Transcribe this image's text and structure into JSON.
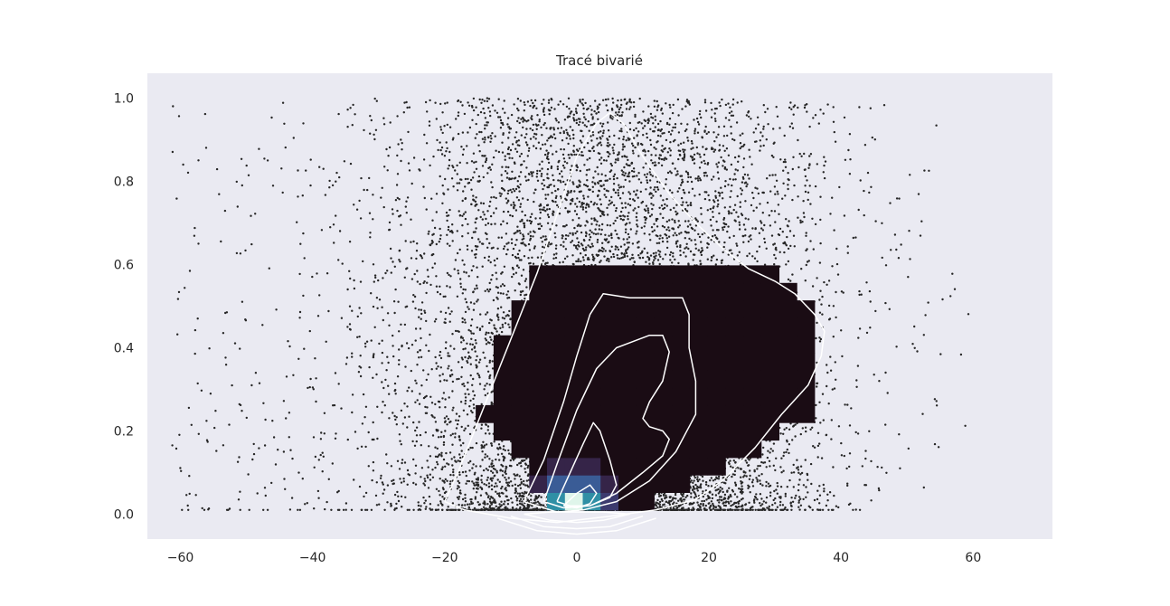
{
  "chart_data": {
    "type": "scatter",
    "title": "Tracé bivarié",
    "xlabel": "",
    "ylabel": "",
    "xlim": [
      -65,
      72
    ],
    "ylim": [
      -0.06,
      1.06
    ],
    "xticks": [
      -60,
      -40,
      -20,
      0,
      20,
      40,
      60
    ],
    "yticks": [
      0.0,
      0.2,
      0.4,
      0.6,
      0.8,
      1.0
    ],
    "xtick_labels": [
      "−60",
      "−40",
      "−20",
      "0",
      "20",
      "40",
      "60"
    ],
    "ytick_labels": [
      "0.0",
      "0.2",
      "0.4",
      "0.6",
      "0.8",
      "1.0"
    ],
    "grid": false,
    "background": "#eaeaf2",
    "layers": [
      "scatter",
      "hist2d",
      "kde-contour"
    ],
    "colors": {
      "points": "#262626",
      "contour": "#ffffff",
      "colormap": [
        "#1a0c14",
        "#2a1633",
        "#352448",
        "#3c3a6e",
        "#3a5c96",
        "#2f8fa5",
        "#4fb8b0",
        "#dff5ea"
      ]
    },
    "scatter_bounds": {
      "x_range": [
        -62,
        70
      ],
      "y_range": [
        0.01,
        1.0
      ],
      "dense_core": {
        "x_center": 5,
        "x_spread": 14,
        "y_peak": 0.0
      }
    },
    "hist2d": {
      "x_edges_start": -18,
      "x_bin_width": 2.7,
      "y_edges_start": 0.01,
      "y_bin_width": 0.042,
      "peak_bin": {
        "x": -0.4,
        "y": 0.02,
        "level": 1.0
      }
    },
    "kde_contours": [
      {
        "level": 1,
        "points": [
          [
            -20,
            0.03
          ],
          [
            -18,
            0.1
          ],
          [
            -15,
            0.22
          ],
          [
            -12,
            0.34
          ],
          [
            -9,
            0.46
          ],
          [
            -6,
            0.58
          ],
          [
            -3,
            0.72
          ],
          [
            0,
            0.86
          ],
          [
            3,
            0.94
          ],
          [
            5,
            0.965
          ],
          [
            7,
            0.94
          ],
          [
            10,
            0.86
          ],
          [
            14,
            0.77
          ],
          [
            18,
            0.7
          ],
          [
            22,
            0.64
          ],
          [
            26,
            0.59
          ],
          [
            30,
            0.56
          ],
          [
            33,
            0.53
          ],
          [
            36,
            0.48
          ],
          [
            37.5,
            0.44
          ],
          [
            37,
            0.38
          ],
          [
            35,
            0.31
          ],
          [
            31,
            0.24
          ],
          [
            27,
            0.16
          ],
          [
            22,
            0.08
          ],
          [
            18,
            0.035
          ],
          [
            12,
            0.01
          ],
          [
            5,
            -0.005
          ],
          [
            -3,
            -0.02
          ],
          [
            -10,
            -0.01
          ],
          [
            -17,
            0.01
          ],
          [
            -20,
            0.03
          ]
        ]
      },
      {
        "level": 2,
        "points": [
          [
            -8,
            0.03
          ],
          [
            -5,
            0.13
          ],
          [
            -2,
            0.27
          ],
          [
            0,
            0.38
          ],
          [
            2,
            0.48
          ],
          [
            4,
            0.53
          ],
          [
            8,
            0.52
          ],
          [
            13,
            0.52
          ],
          [
            16,
            0.52
          ],
          [
            17,
            0.48
          ],
          [
            17,
            0.4
          ],
          [
            18,
            0.32
          ],
          [
            18,
            0.24
          ],
          [
            15,
            0.15
          ],
          [
            11,
            0.08
          ],
          [
            6,
            0.03
          ],
          [
            1,
            0.01
          ],
          [
            -3,
            0.005
          ],
          [
            -8,
            0.03
          ]
        ]
      },
      {
        "level": 3,
        "points": [
          [
            -5,
            0.03
          ],
          [
            -3,
            0.12
          ],
          [
            0,
            0.25
          ],
          [
            3,
            0.35
          ],
          [
            6,
            0.4
          ],
          [
            11,
            0.43
          ],
          [
            13,
            0.43
          ],
          [
            14,
            0.39
          ],
          [
            13,
            0.32
          ],
          [
            11,
            0.27
          ],
          [
            10,
            0.23
          ],
          [
            11,
            0.21
          ],
          [
            13,
            0.2
          ],
          [
            14,
            0.18
          ],
          [
            13,
            0.14
          ],
          [
            10,
            0.1
          ],
          [
            6,
            0.05
          ],
          [
            2,
            0.02
          ],
          [
            -2,
            0.015
          ],
          [
            -5,
            0.03
          ]
        ]
      },
      {
        "level": 4,
        "points": [
          [
            -3,
            0.03
          ],
          [
            -1,
            0.1
          ],
          [
            1,
            0.17
          ],
          [
            2.5,
            0.22
          ],
          [
            3.5,
            0.2
          ],
          [
            5,
            0.13
          ],
          [
            6,
            0.07
          ],
          [
            5,
            0.04
          ],
          [
            2,
            0.02
          ],
          [
            -1,
            0.02
          ],
          [
            -3,
            0.03
          ]
        ]
      },
      {
        "level": 5,
        "points": [
          [
            -2,
            0.02
          ],
          [
            0,
            0.05
          ],
          [
            2,
            0.07
          ],
          [
            3,
            0.05
          ],
          [
            2,
            0.025
          ],
          [
            0,
            0.015
          ],
          [
            -2,
            0.02
          ]
        ]
      },
      {
        "level": 6,
        "points": [
          [
            -8,
            0.0
          ],
          [
            -4,
            -0.015
          ],
          [
            0,
            -0.02
          ],
          [
            4,
            -0.015
          ],
          [
            8,
            0.0
          ],
          [
            4,
            0.005
          ],
          [
            0,
            0.005
          ],
          [
            -4,
            0.005
          ],
          [
            -8,
            0.0
          ]
        ]
      },
      {
        "level": 7,
        "points": [
          [
            -10,
            -0.005
          ],
          [
            -5,
            -0.03
          ],
          [
            0,
            -0.035
          ],
          [
            5,
            -0.03
          ],
          [
            10,
            -0.005
          ]
        ]
      },
      {
        "level": 8,
        "points": [
          [
            -12,
            -0.01
          ],
          [
            -6,
            -0.04
          ],
          [
            0,
            -0.048
          ],
          [
            6,
            -0.04
          ],
          [
            12,
            -0.01
          ]
        ]
      }
    ]
  }
}
